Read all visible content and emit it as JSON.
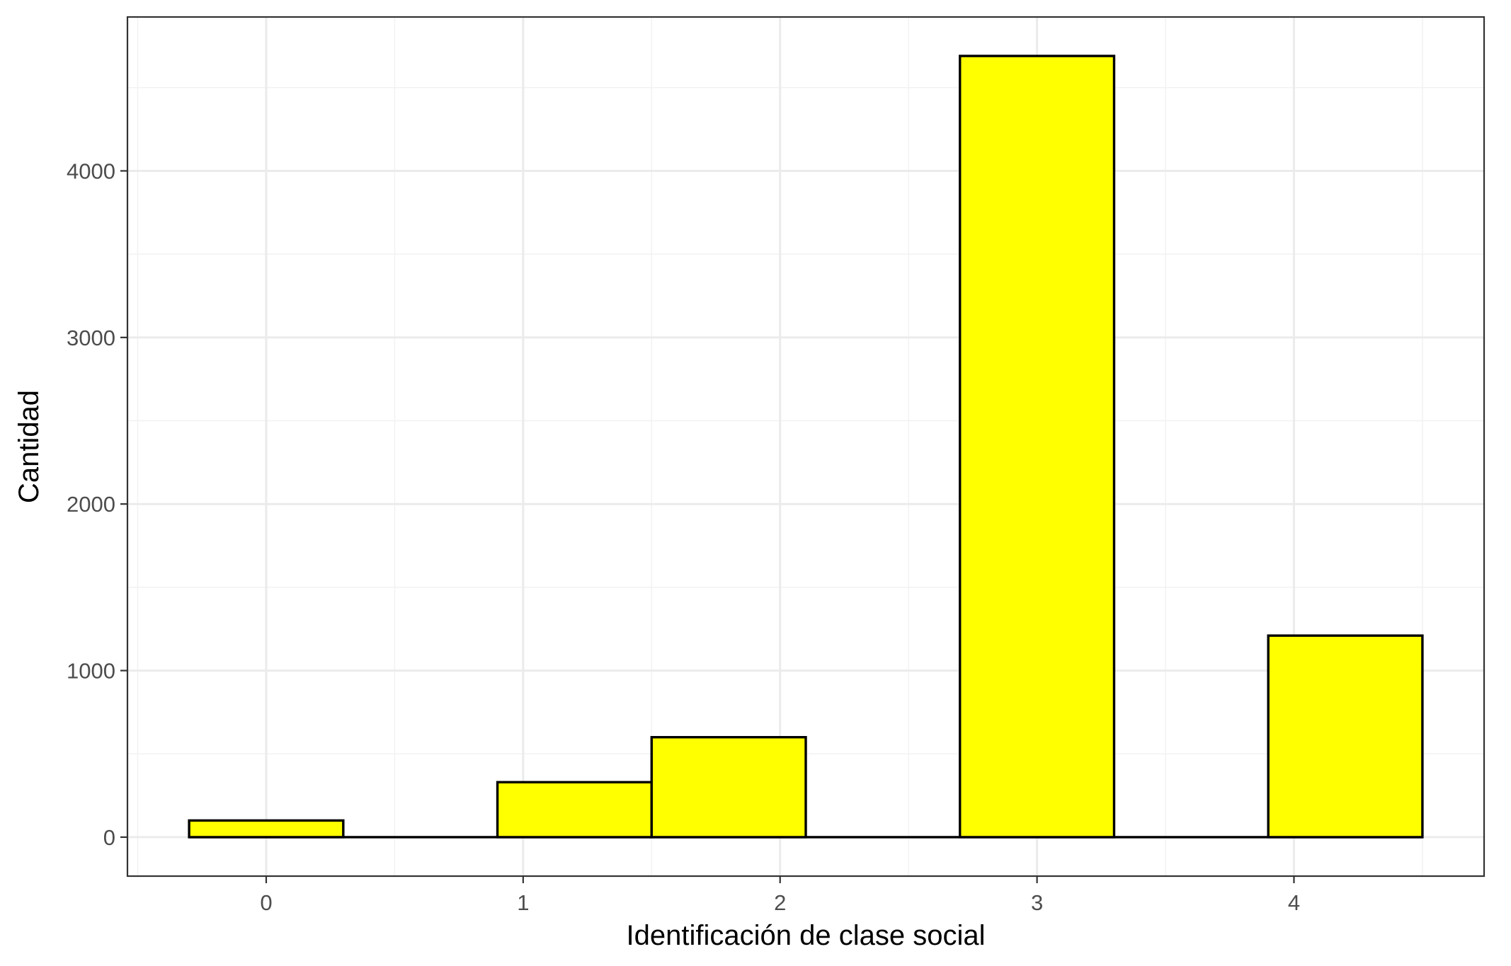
{
  "chart_data": {
    "type": "bar",
    "title": "",
    "xlabel": "Identificación de clase social",
    "ylabel": "Cantidad",
    "bins": [
      {
        "start": -0.3,
        "end": 0.3,
        "value": 100
      },
      {
        "start": 0.3,
        "end": 0.9,
        "value": 0
      },
      {
        "start": 0.9,
        "end": 1.5,
        "value": 330
      },
      {
        "start": 1.5,
        "end": 2.1,
        "value": 600
      },
      {
        "start": 2.1,
        "end": 2.7,
        "value": 0
      },
      {
        "start": 2.7,
        "end": 3.3,
        "value": 4690
      },
      {
        "start": 3.3,
        "end": 3.9,
        "value": 0
      },
      {
        "start": 3.9,
        "end": 4.5,
        "value": 1210
      }
    ],
    "xlim": [
      -0.54,
      4.74
    ],
    "ylim": [
      -234,
      4924
    ],
    "x_ticks": [
      0,
      1,
      2,
      3,
      4
    ],
    "x_tick_labels": [
      "0",
      "1",
      "2",
      "3",
      "4"
    ],
    "y_ticks": [
      0,
      1000,
      2000,
      3000,
      4000
    ],
    "y_tick_labels": [
      "0",
      "1000",
      "2000",
      "3000",
      "4000"
    ],
    "grid": true,
    "legend": "none",
    "colors": {
      "bar_fill": "#ffff00",
      "bar_outline": "#000000",
      "panel_border": "#333333",
      "grid": "#ebebeb"
    }
  }
}
